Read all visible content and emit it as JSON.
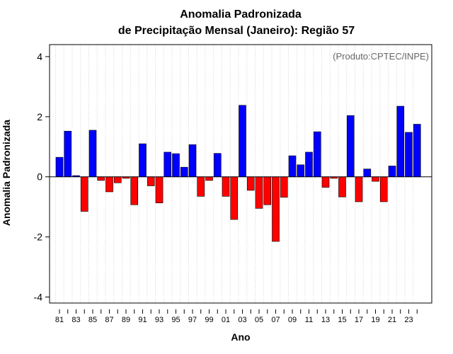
{
  "chart_data": {
    "type": "bar",
    "title_line1": "Anomalia Padronizada",
    "title_line2": "de Precipitação Mensal (Janeiro): Região 57",
    "xlabel": "Ano",
    "ylabel": "Anomalia Padronizada",
    "credit": "(Produto:CPTEC/INPE)",
    "ylim": [
      -4.2,
      4.4
    ],
    "yticks": [
      -4,
      -2,
      0,
      2,
      4
    ],
    "grid": "vertical-dotted",
    "years": [
      "1981",
      "1982",
      "1983",
      "1984",
      "1985",
      "1986",
      "1987",
      "1988",
      "1989",
      "1990",
      "1991",
      "1992",
      "1993",
      "1994",
      "1995",
      "1996",
      "1997",
      "1998",
      "1999",
      "2000",
      "2001",
      "2002",
      "2003",
      "2004",
      "2005",
      "2006",
      "2007",
      "2008",
      "2009",
      "2010",
      "2011",
      "2012",
      "2013",
      "2014",
      "2015",
      "2016",
      "2017",
      "2018",
      "2019",
      "2020",
      "2021",
      "2022",
      "2023",
      "2024"
    ],
    "values": [
      0.65,
      1.52,
      0.04,
      -1.15,
      1.55,
      -0.12,
      -0.5,
      -0.2,
      -0.05,
      -0.93,
      1.1,
      -0.3,
      -0.87,
      0.82,
      0.77,
      0.32,
      1.07,
      -0.65,
      -0.12,
      0.78,
      -0.65,
      -1.42,
      2.38,
      -0.45,
      -1.05,
      -0.93,
      -2.15,
      -0.68,
      0.7,
      0.4,
      0.82,
      1.5,
      -0.35,
      -0.05,
      -0.67,
      2.04,
      -0.83,
      0.26,
      -0.15,
      -0.83,
      0.36,
      2.35,
      1.48,
      1.75
    ],
    "xtick_labels": [
      "81",
      "83",
      "85",
      "87",
      "89",
      "91",
      "93",
      "95",
      "97",
      "99",
      "01",
      "03",
      "05",
      "07",
      "09",
      "11",
      "13",
      "15",
      "17",
      "19",
      "21",
      "23"
    ],
    "colors": {
      "positive": "#0000ff",
      "negative": "#ff0000",
      "grid": "#d0d0d0",
      "credit": "#666666"
    }
  }
}
